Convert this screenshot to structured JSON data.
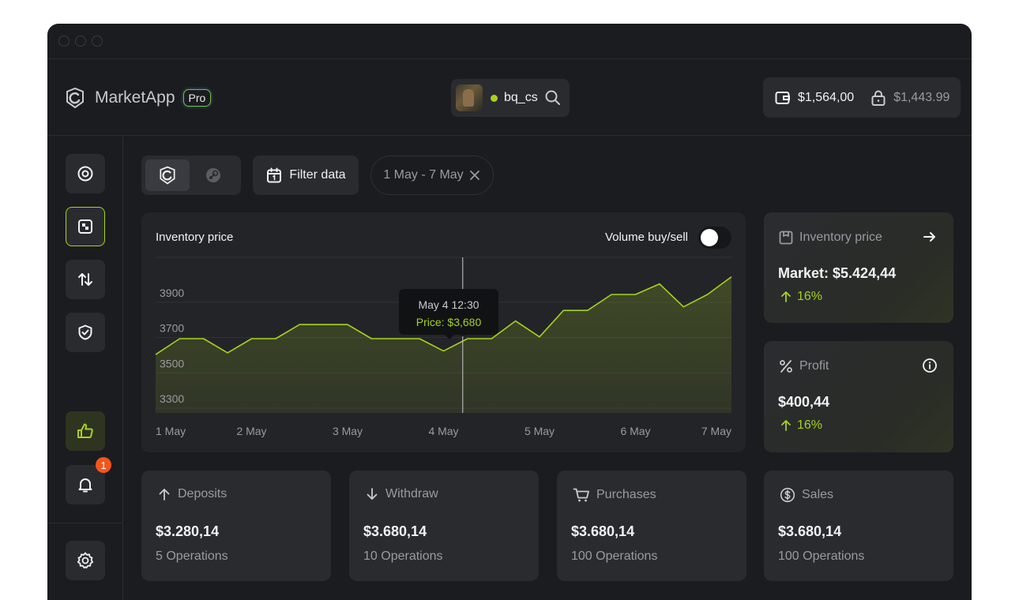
{
  "app": {
    "name": "MarketApp",
    "badge": "Pro"
  },
  "user": {
    "username": "bq_cs",
    "status_color": "#a6d21f"
  },
  "balance": {
    "main": "$1,564,00",
    "locked": "$1,443.99"
  },
  "sidebar": {
    "items": [
      {
        "name": "profile",
        "icon": "user-circle-icon"
      },
      {
        "name": "inventory",
        "icon": "inventory-icon",
        "active": true
      },
      {
        "name": "trades",
        "icon": "arrows-up-down-icon"
      },
      {
        "name": "security",
        "icon": "shield-check-icon"
      },
      {
        "name": "feedback",
        "icon": "thumbs-up-icon"
      },
      {
        "name": "notifications",
        "icon": "bell-icon",
        "badge": "1"
      },
      {
        "name": "settings",
        "icon": "gear-icon"
      }
    ]
  },
  "toolbar": {
    "sources": [
      {
        "icon": "marketapp-logo-icon",
        "active": true
      },
      {
        "icon": "steam-icon",
        "active": false
      }
    ],
    "filter_label": "Filter data",
    "date_range": "1 May - 7 May"
  },
  "chart_card": {
    "title": "Inventory price",
    "toggle_label": "Volume buy/sell",
    "toggle_on": false,
    "tooltip": {
      "date": "May 4 12:30",
      "price": "Price: $3,680"
    }
  },
  "chart_data": {
    "type": "area",
    "x": [
      1,
      1.25,
      1.5,
      1.75,
      2,
      2.25,
      2.5,
      2.75,
      3,
      3.25,
      3.5,
      3.75,
      4,
      4.25,
      4.5,
      4.75,
      5,
      5.25,
      5.5,
      5.75,
      6,
      6.25,
      6.5,
      6.75,
      7
    ],
    "y": [
      3550,
      3640,
      3640,
      3560,
      3640,
      3640,
      3720,
      3720,
      3720,
      3640,
      3640,
      3640,
      3570,
      3640,
      3640,
      3740,
      3650,
      3800,
      3800,
      3890,
      3890,
      3950,
      3820,
      3890,
      3990
    ],
    "tick_labels_x": [
      "1 May",
      "2 May",
      "3 May",
      "4 May",
      "5 May",
      "6 May",
      "7 May"
    ],
    "y_ticks": [
      3900,
      3700,
      3500,
      3300
    ],
    "ylim": [
      3220,
      4100
    ],
    "xlim": [
      1,
      7
    ],
    "highlight": {
      "x": 4.2,
      "y": 3680
    },
    "grid": true,
    "line_color": "#a6d21f"
  },
  "inventory_card": {
    "title": "Inventory price",
    "value": "Market: $5.424,44",
    "change": "16%"
  },
  "profit_card": {
    "title": "Profit",
    "value": "$400,44",
    "change": "16%"
  },
  "stats": [
    {
      "title": "Deposits",
      "icon": "arrow-up-icon",
      "value": "$3.280,14",
      "ops": "5 Operations"
    },
    {
      "title": "Withdraw",
      "icon": "arrow-down-icon",
      "value": "$3.680,14",
      "ops": "10 Operations"
    },
    {
      "title": "Purchases",
      "icon": "cart-icon",
      "value": "$3.680,14",
      "ops": "100 Operations"
    },
    {
      "title": "Sales",
      "icon": "dollar-circle-icon",
      "value": "$3.680,14",
      "ops": "100 Operations"
    }
  ]
}
